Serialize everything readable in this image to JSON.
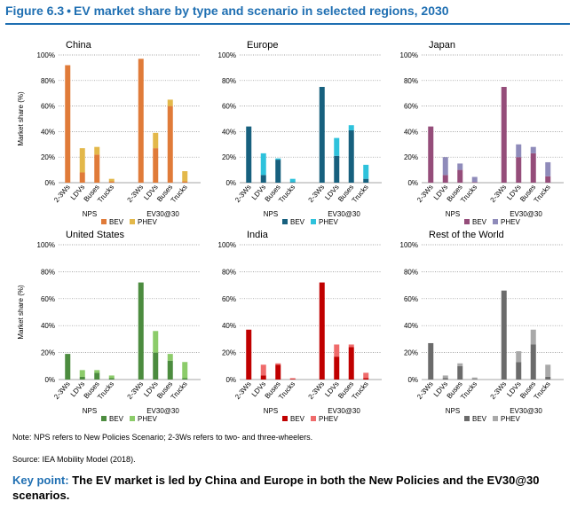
{
  "figure": {
    "number": "Figure 6.3",
    "bullet": "•",
    "title": "EV market share by type and scenario in selected regions, 2030"
  },
  "note": "Note: NPS refers to New Policies Scenario; 2-3Ws refers to two- and three-wheelers.",
  "source": "Source: IEA Mobility Model (2018).",
  "key_point": {
    "label": "Key point:",
    "text": "The EV market is led by China and Europe in both the New Policies and the EV30@30 scenarios."
  },
  "chart_data": [
    {
      "type": "bar",
      "stacked": true,
      "title": "China",
      "ylabel": "Market share (%)",
      "ylim": [
        0,
        100
      ],
      "yticks": [
        "0%",
        "20%",
        "40%",
        "60%",
        "80%",
        "100%"
      ],
      "groups": [
        "NPS",
        "EV30@30"
      ],
      "categories": [
        "2-3Ws",
        "LDVs",
        "Buses",
        "Trucks"
      ],
      "series": [
        {
          "name": "BEV",
          "color": "#e07b39",
          "values": [
            [
              92,
              8,
              22,
              1
            ],
            [
              97,
              27,
              60,
              1
            ]
          ]
        },
        {
          "name": "PHEV",
          "color": "#e3b84a",
          "values": [
            [
              0,
              19,
              6,
              2
            ],
            [
              0,
              12,
              5,
              8
            ]
          ]
        }
      ]
    },
    {
      "type": "bar",
      "stacked": true,
      "title": "Europe",
      "ylabel": "",
      "ylim": [
        0,
        100
      ],
      "yticks": [
        "0%",
        "20%",
        "40%",
        "60%",
        "80%",
        "100%"
      ],
      "groups": [
        "NPS",
        "EV30@30"
      ],
      "categories": [
        "2-3Ws",
        "LDVs",
        "Buses",
        "Trucks"
      ],
      "series": [
        {
          "name": "BEV",
          "color": "#17607e",
          "values": [
            [
              44,
              6,
              18,
              0.5
            ],
            [
              75,
              21,
              41,
              3
            ]
          ]
        },
        {
          "name": "PHEV",
          "color": "#2ec2dc",
          "values": [
            [
              0,
              17,
              1,
              2.5
            ],
            [
              0,
              14,
              4,
              11
            ]
          ]
        }
      ]
    },
    {
      "type": "bar",
      "stacked": true,
      "title": "Japan",
      "ylabel": "",
      "ylim": [
        0,
        100
      ],
      "yticks": [
        "0%",
        "20%",
        "40%",
        "60%",
        "80%",
        "100%"
      ],
      "groups": [
        "NPS",
        "EV30@30"
      ],
      "categories": [
        "2-3Ws",
        "LDVs",
        "Buses",
        "Trucks"
      ],
      "series": [
        {
          "name": "BEV",
          "color": "#954d7a",
          "values": [
            [
              44,
              6,
              10,
              0.5
            ],
            [
              75,
              20,
              23,
              5
            ]
          ]
        },
        {
          "name": "PHEV",
          "color": "#8f8bba",
          "values": [
            [
              0,
              14,
              5,
              4
            ],
            [
              0,
              10,
              5,
              11
            ]
          ]
        }
      ]
    },
    {
      "type": "bar",
      "stacked": true,
      "title": "United States",
      "ylabel": "Market share (%)",
      "ylim": [
        0,
        100
      ],
      "yticks": [
        "0%",
        "20%",
        "40%",
        "60%",
        "80%",
        "100%"
      ],
      "groups": [
        "NPS",
        "EV30@30"
      ],
      "categories": [
        "2-3Ws",
        "LDVs",
        "Buses",
        "Trucks"
      ],
      "series": [
        {
          "name": "BEV",
          "color": "#4c8c3f",
          "values": [
            [
              19,
              2,
              5,
              1
            ],
            [
              72,
              20,
              14,
              1
            ]
          ]
        },
        {
          "name": "PHEV",
          "color": "#8ccc6a",
          "values": [
            [
              0,
              5,
              2,
              2
            ],
            [
              0,
              16,
              5,
              12
            ]
          ]
        }
      ]
    },
    {
      "type": "bar",
      "stacked": true,
      "title": "India",
      "ylabel": "",
      "ylim": [
        0,
        100
      ],
      "yticks": [
        "0%",
        "20%",
        "40%",
        "60%",
        "80%",
        "100%"
      ],
      "groups": [
        "NPS",
        "EV30@30"
      ],
      "categories": [
        "2-3Ws",
        "LDVs",
        "Buses",
        "Trucks"
      ],
      "series": [
        {
          "name": "BEV",
          "color": "#c00000",
          "values": [
            [
              37,
              3,
              11,
              0.5
            ],
            [
              72,
              17,
              24,
              1
            ]
          ]
        },
        {
          "name": "PHEV",
          "color": "#ef6b6b",
          "values": [
            [
              0,
              8,
              1,
              0.5
            ],
            [
              0,
              9,
              2,
              4
            ]
          ]
        }
      ]
    },
    {
      "type": "bar",
      "stacked": true,
      "title": "Rest of the World",
      "ylabel": "",
      "ylim": [
        0,
        100
      ],
      "yticks": [
        "0%",
        "20%",
        "40%",
        "60%",
        "80%",
        "100%"
      ],
      "groups": [
        "NPS",
        "EV30@30"
      ],
      "categories": [
        "2-3Ws",
        "LDVs",
        "Buses",
        "Trucks"
      ],
      "series": [
        {
          "name": "BEV",
          "color": "#6b6b6b",
          "values": [
            [
              27,
              1,
              10,
              0.5
            ],
            [
              66,
              13,
              26,
              2
            ]
          ]
        },
        {
          "name": "PHEV",
          "color": "#a9a9a9",
          "values": [
            [
              0,
              2,
              2,
              1
            ],
            [
              0,
              8,
              11,
              9
            ]
          ]
        }
      ]
    }
  ]
}
